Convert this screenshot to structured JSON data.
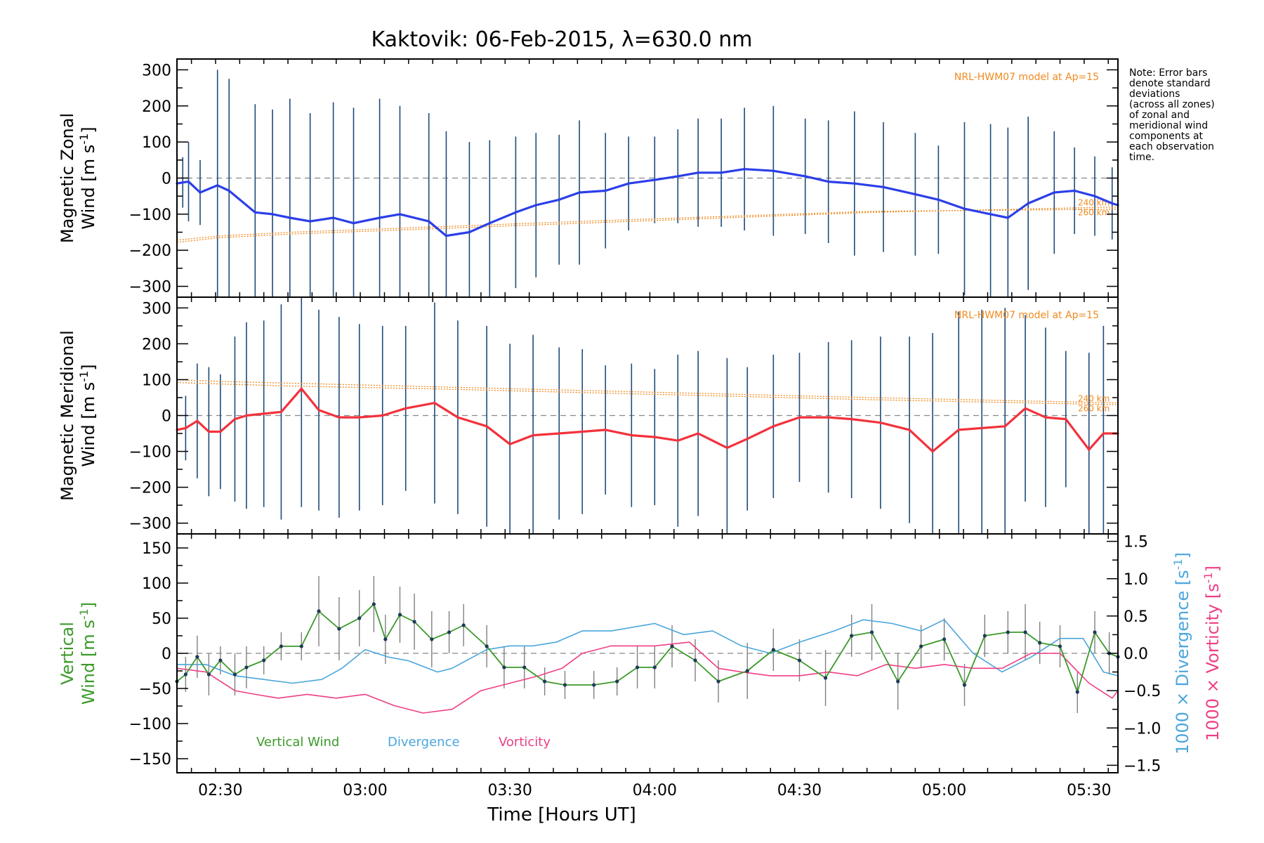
{
  "title": "Kaktovik: 06-Feb-2015, λ=630.0 nm",
  "note_lines": [
    "Note: Error bars",
    "denote standard",
    "deviations",
    "(across all zones)",
    "of zonal and",
    "meridional wind",
    "components at",
    "each observation",
    "time."
  ],
  "colors": {
    "zonal": "#2b3fe8",
    "meridional": "#f2323c",
    "vertical": "#3c9a2a",
    "divergence": "#4aa6dc",
    "vorticity": "#ee3f86",
    "model": "#f08a1e",
    "errorbar": "#1f4a7a",
    "vertical_err": "#808080"
  },
  "x_ticks": [
    "02:30",
    "03:00",
    "03:30",
    "04:00",
    "04:30",
    "05:00",
    "05:30"
  ],
  "x_tick_hours": [
    2.5,
    3.0,
    3.5,
    4.0,
    4.5,
    5.0,
    5.5
  ],
  "xlabel": "Time [Hours UT]",
  "chart_data": [
    {
      "type": "line",
      "panel": "zonal",
      "ylabel": [
        "Magnetic Zonal",
        "Wind [m s",
        "-1",
        "]"
      ],
      "ylim": [
        -330,
        330
      ],
      "y_ticks": [
        300,
        200,
        100,
        0,
        -100,
        -200,
        -300
      ],
      "model_label": "NRL-HWM07 model at Ap=15",
      "model_km": [
        "240 km",
        "260 km"
      ],
      "x": [
        2.35,
        2.37,
        2.39,
        2.43,
        2.49,
        2.53,
        2.62,
        2.68,
        2.74,
        2.81,
        2.89,
        2.96,
        3.05,
        3.12,
        3.22,
        3.28,
        3.36,
        3.43,
        3.52,
        3.59,
        3.67,
        3.74,
        3.83,
        3.91,
        4.0,
        4.08,
        4.15,
        4.23,
        4.31,
        4.41,
        4.52,
        4.6,
        4.69,
        4.79,
        4.9,
        4.98,
        5.07,
        5.16,
        5.22,
        5.29,
        5.38,
        5.45,
        5.52,
        5.58,
        5.6
      ],
      "values": [
        -15,
        -12,
        -10,
        -40,
        -20,
        -35,
        -95,
        -100,
        -110,
        -120,
        -110,
        -125,
        -110,
        -100,
        -120,
        -160,
        -150,
        -125,
        -95,
        -75,
        -60,
        -40,
        -35,
        -15,
        -5,
        5,
        15,
        15,
        25,
        20,
        5,
        -10,
        -15,
        -25,
        -45,
        -60,
        -85,
        -100,
        -110,
        -70,
        -40,
        -35,
        -50,
        -70,
        -75
      ],
      "error": [
        80,
        70,
        110,
        90,
        320,
        310,
        300,
        290,
        330,
        300,
        320,
        320,
        330,
        300,
        300,
        290,
        250,
        230,
        210,
        200,
        180,
        200,
        160,
        130,
        120,
        130,
        150,
        150,
        170,
        180,
        160,
        170,
        200,
        180,
        170,
        150,
        240,
        250,
        250,
        240,
        170,
        120,
        110,
        100,
        330
      ],
      "model_240": [
        -178,
        -165,
        -155,
        -140,
        -125,
        -110,
        -95,
        -80
      ],
      "model_260": [
        -172,
        -160,
        -150,
        -135,
        -120,
        -106,
        -92,
        -86
      ],
      "model_x": [
        2.35,
        2.5,
        2.75,
        3.25,
        3.75,
        4.25,
        4.75,
        5.6
      ]
    },
    {
      "type": "line",
      "panel": "meridional",
      "ylabel": [
        "Magnetic Meridional",
        "Wind [m s",
        "-1",
        "]"
      ],
      "ylim": [
        -330,
        330
      ],
      "y_ticks": [
        300,
        200,
        100,
        0,
        -100,
        -200,
        -300
      ],
      "model_label": "NRL-HWM07 model at Ap=15",
      "model_km": [
        "240 km",
        "260 km"
      ],
      "x": [
        2.35,
        2.38,
        2.42,
        2.46,
        2.5,
        2.55,
        2.59,
        2.65,
        2.71,
        2.78,
        2.84,
        2.91,
        2.98,
        3.06,
        3.14,
        3.24,
        3.32,
        3.42,
        3.5,
        3.58,
        3.67,
        3.75,
        3.83,
        3.92,
        4.0,
        4.08,
        4.15,
        4.25,
        4.32,
        4.41,
        4.5,
        4.6,
        4.68,
        4.78,
        4.88,
        4.96,
        5.05,
        5.13,
        5.21,
        5.28,
        5.35,
        5.42,
        5.5,
        5.55,
        5.6
      ],
      "values": [
        -40,
        -35,
        -15,
        -45,
        -45,
        -10,
        0,
        5,
        10,
        75,
        15,
        -5,
        -5,
        0,
        20,
        35,
        -5,
        -30,
        -80,
        -55,
        -50,
        -45,
        -40,
        -55,
        -60,
        -70,
        -50,
        -90,
        -65,
        -30,
        -5,
        -5,
        -10,
        -20,
        -40,
        -100,
        -40,
        -35,
        -30,
        20,
        -5,
        -10,
        -95,
        -50,
        -50
      ],
      "error": [
        110,
        90,
        160,
        180,
        160,
        230,
        260,
        260,
        300,
        330,
        280,
        280,
        260,
        250,
        230,
        280,
        270,
        280,
        280,
        280,
        240,
        230,
        180,
        200,
        190,
        240,
        230,
        250,
        200,
        200,
        180,
        210,
        220,
        240,
        260,
        330,
        330,
        330,
        330,
        260,
        250,
        190,
        270,
        300,
        330
      ],
      "model_240": [
        100,
        95,
        90,
        80,
        70,
        60,
        50,
        35
      ],
      "model_260": [
        92,
        88,
        82,
        74,
        64,
        54,
        44,
        30
      ],
      "model_x": [
        2.35,
        2.5,
        2.75,
        3.25,
        3.75,
        4.25,
        4.75,
        5.6
      ]
    },
    {
      "type": "line",
      "panel": "vertical",
      "ylabel_left": [
        "Vertical",
        "Wind [m s",
        "-1",
        "]"
      ],
      "ylabel_right_1": [
        "1000 × Divergence [s",
        "-1",
        "]"
      ],
      "ylabel_right_2": [
        "1000 × Vorticity [s",
        "-1",
        "]"
      ],
      "ylim": [
        -170,
        170
      ],
      "y_ticks": [
        150,
        100,
        50,
        0,
        -50,
        -100,
        -150
      ],
      "ylim_right": [
        -1.6,
        1.6
      ],
      "y_ticks_right": [
        1.5,
        1.0,
        0.5,
        0.0,
        -0.5,
        -1.0,
        -1.5
      ],
      "y_ticks_right_labels": [
        "1.5",
        "1.0",
        "0.5",
        "0.0",
        "−0.5",
        "−1.0",
        "−1.5"
      ],
      "legend": [
        "Vertical Wind",
        "Divergence",
        "Vorticity"
      ],
      "vertical_wind": {
        "x": [
          2.35,
          2.38,
          2.42,
          2.46,
          2.5,
          2.55,
          2.59,
          2.65,
          2.71,
          2.78,
          2.84,
          2.91,
          2.98,
          3.03,
          3.07,
          3.12,
          3.17,
          3.23,
          3.29,
          3.34,
          3.42,
          3.48,
          3.55,
          3.62,
          3.69,
          3.79,
          3.87,
          3.94,
          4.0,
          4.06,
          4.14,
          4.22,
          4.32,
          4.41,
          4.5,
          4.59,
          4.68,
          4.75,
          4.84,
          4.92,
          5.0,
          5.07,
          5.14,
          5.22,
          5.28,
          5.33,
          5.4,
          5.46,
          5.52,
          5.57,
          5.6
        ],
        "values": [
          -40,
          -30,
          -5,
          -30,
          -10,
          -30,
          -20,
          -10,
          10,
          10,
          60,
          35,
          50,
          70,
          20,
          55,
          45,
          20,
          30,
          40,
          10,
          -20,
          -20,
          -40,
          -45,
          -45,
          -40,
          -20,
          -20,
          10,
          -10,
          -40,
          -25,
          5,
          -10,
          -35,
          25,
          30,
          -40,
          10,
          20,
          -45,
          25,
          30,
          30,
          15,
          10,
          -55,
          30,
          0,
          -5
        ],
        "error": [
          30,
          25,
          30,
          30,
          20,
          30,
          30,
          20,
          20,
          20,
          50,
          45,
          40,
          40,
          35,
          40,
          40,
          40,
          30,
          30,
          30,
          30,
          30,
          20,
          20,
          20,
          20,
          30,
          30,
          30,
          30,
          30,
          40,
          30,
          30,
          40,
          30,
          40,
          40,
          30,
          30,
          30,
          30,
          30,
          40,
          30,
          30,
          30,
          30,
          30,
          20
        ]
      },
      "divergence": {
        "x": [
          2.35,
          2.45,
          2.55,
          2.65,
          2.75,
          2.85,
          2.92,
          3.0,
          3.08,
          3.15,
          3.25,
          3.3,
          3.42,
          3.5,
          3.58,
          3.66,
          3.75,
          3.85,
          4.0,
          4.1,
          4.2,
          4.3,
          4.4,
          4.5,
          4.62,
          4.72,
          4.82,
          4.92,
          5.0,
          5.1,
          5.2,
          5.3,
          5.4,
          5.48,
          5.55,
          5.6
        ],
        "values": [
          -0.15,
          -0.15,
          -0.3,
          -0.35,
          -0.4,
          -0.35,
          -0.2,
          0.05,
          -0.05,
          -0.1,
          -0.25,
          -0.2,
          0.05,
          0.1,
          0.1,
          0.15,
          0.3,
          0.3,
          0.4,
          0.25,
          0.3,
          0.1,
          0.0,
          0.15,
          0.3,
          0.45,
          0.4,
          0.3,
          0.45,
          0.0,
          -0.25,
          -0.05,
          0.2,
          0.2,
          -0.25,
          -0.3
        ]
      },
      "vorticity": {
        "x": [
          2.35,
          2.45,
          2.55,
          2.62,
          2.7,
          2.8,
          2.9,
          3.0,
          3.1,
          3.2,
          3.3,
          3.4,
          3.5,
          3.6,
          3.68,
          3.75,
          3.85,
          4.0,
          4.12,
          4.22,
          4.3,
          4.4,
          4.5,
          4.6,
          4.7,
          4.8,
          4.9,
          5.0,
          5.1,
          5.2,
          5.3,
          5.4,
          5.5,
          5.58,
          5.6
        ],
        "values": [
          -0.2,
          -0.25,
          -0.5,
          -0.55,
          -0.6,
          -0.55,
          -0.6,
          -0.55,
          -0.7,
          -0.8,
          -0.75,
          -0.5,
          -0.4,
          -0.3,
          -0.2,
          0.0,
          0.1,
          0.1,
          0.15,
          -0.2,
          -0.25,
          -0.3,
          -0.3,
          -0.25,
          -0.3,
          -0.15,
          -0.2,
          -0.15,
          -0.2,
          -0.2,
          0.0,
          0.0,
          -0.4,
          -0.6,
          -0.5
        ]
      }
    }
  ]
}
